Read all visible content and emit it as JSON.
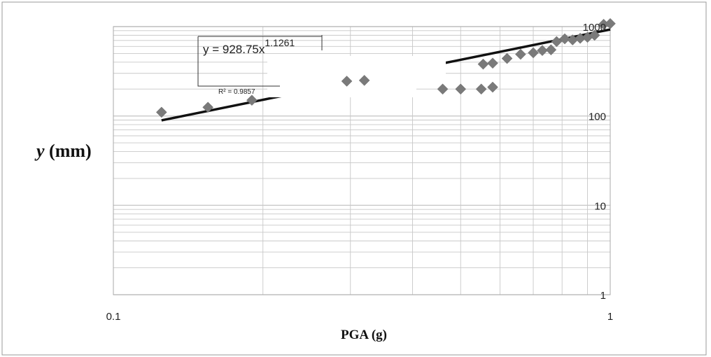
{
  "chart_data": {
    "type": "scatter",
    "title": "",
    "xlabel": "PGA (g)",
    "ylabel_var": "y",
    "ylabel_unit": " (mm)",
    "xscale": "log",
    "yscale": "log",
    "xlim": [
      0.1,
      1
    ],
    "ylim": [
      1,
      1000
    ],
    "grid": true,
    "legend": "none",
    "x_ticks": [
      "0.1",
      "1"
    ],
    "y_ticks": [
      "1",
      "10",
      "100",
      "1000"
    ],
    "x_tick_values": [
      0.1,
      1
    ],
    "y_tick_values": [
      1,
      10,
      100,
      1000
    ],
    "marker": "diamond",
    "colors": {
      "marker": "#7a7a7a",
      "trendline": "#111111",
      "grid": "#c8c8c8",
      "frame": "#999999"
    },
    "series": [
      {
        "points": [
          {
            "x": 0.125,
            "y": 110
          },
          {
            "x": 0.155,
            "y": 125
          },
          {
            "x": 0.19,
            "y": 150
          },
          {
            "x": 0.295,
            "y": 245
          },
          {
            "x": 0.32,
            "y": 250
          },
          {
            "x": 0.46,
            "y": 200
          },
          {
            "x": 0.5,
            "y": 200
          },
          {
            "x": 0.55,
            "y": 200
          },
          {
            "x": 0.58,
            "y": 210
          },
          {
            "x": 0.555,
            "y": 380
          },
          {
            "x": 0.58,
            "y": 390
          },
          {
            "x": 0.62,
            "y": 440
          },
          {
            "x": 0.66,
            "y": 490
          },
          {
            "x": 0.7,
            "y": 510
          },
          {
            "x": 0.73,
            "y": 540
          },
          {
            "x": 0.76,
            "y": 550
          },
          {
            "x": 0.78,
            "y": 680
          },
          {
            "x": 0.81,
            "y": 730
          },
          {
            "x": 0.84,
            "y": 710
          },
          {
            "x": 0.87,
            "y": 740
          },
          {
            "x": 0.9,
            "y": 760
          },
          {
            "x": 0.93,
            "y": 800
          },
          {
            "x": 0.97,
            "y": 1060
          },
          {
            "x": 1.0,
            "y": 1080
          }
        ]
      }
    ],
    "trendline": {
      "type": "power",
      "a": 928.75,
      "b": 1.1261,
      "x_range": [
        0.125,
        1.0
      ],
      "equation_base": "y = 928.75x",
      "equation_exp": "1.1261",
      "r_squared": "R² = 0.9857"
    }
  }
}
